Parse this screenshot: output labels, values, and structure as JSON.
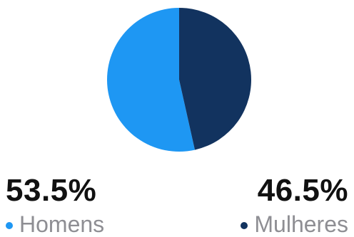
{
  "chart_data": {
    "type": "pie",
    "title": "",
    "slices": [
      {
        "name": "Homens",
        "value": 53.5,
        "label": "53.5%",
        "color": "#1e97f3"
      },
      {
        "name": "Mulheres",
        "value": 46.5,
        "label": "46.5%",
        "color": "#12335f"
      }
    ]
  }
}
